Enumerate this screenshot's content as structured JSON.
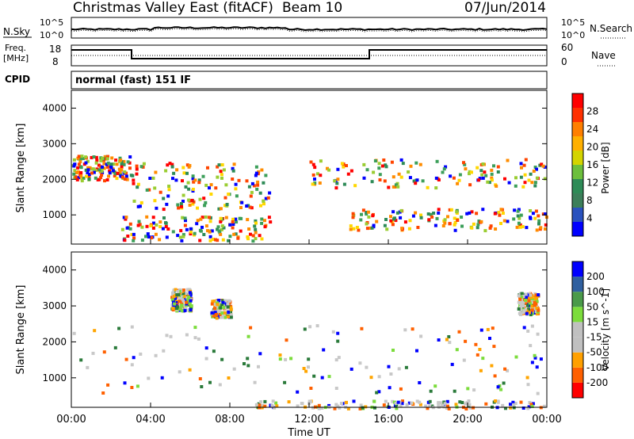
{
  "header": {
    "station": "Christmas Valley East (fitACF)",
    "beam": "Beam 10",
    "date": "07/Jun/2014"
  },
  "panel_labels": {
    "nsky": "N.Sky",
    "nsearch": "N.Search",
    "freq_line1": "Freq.",
    "freq_line2": "[MHz]",
    "nave": "Nave",
    "cpid": "CPID",
    "cpid_value": "normal (fast) 151 IF",
    "noise_top": "10^5",
    "noise_bottom": "10^0",
    "freq_top": "18",
    "freq_bottom": "8",
    "nave_top": "60",
    "nave_bottom": "0"
  },
  "colors": {
    "power_scale": [
      "#0000ff",
      "#2a52be",
      "#3c7f5a",
      "#2e8b57",
      "#6cbf3c",
      "#d4d400",
      "#ffb000",
      "#ff7f00",
      "#ff3000",
      "#ff0000"
    ],
    "velocity_scale": [
      "#ff0000",
      "#ff6000",
      "#ffa000",
      "#c0c0c0",
      "#c0c0c0",
      "#7cdc3c",
      "#4a9a4a",
      "#3060a0",
      "#0000ff"
    ]
  },
  "chart_data": [
    {
      "type": "heatmap",
      "name": "Power panel",
      "ylabel": "Slant Range [km]",
      "xlabel": "",
      "x_ticks": [
        "00:00",
        "04:00",
        "08:00",
        "12:00",
        "16:00",
        "20:00",
        "00:00"
      ],
      "y_ticks": [
        1000,
        2000,
        3000,
        4000
      ],
      "ylim": [
        180,
        4500
      ],
      "xlim_hours": [
        0,
        24
      ],
      "colorbar": {
        "label": "Power [dB]",
        "ticks": [
          4,
          8,
          12,
          16,
          20,
          24,
          28
        ]
      },
      "features": [
        {
          "desc": "ionospheric band",
          "hours": [
            0,
            3
          ],
          "range_km": [
            2000,
            2700
          ],
          "level": "high"
        },
        {
          "desc": "ground scatter",
          "hours": [
            2.5,
            10
          ],
          "range_km": [
            300,
            1000
          ],
          "level": "high"
        },
        {
          "desc": "arc",
          "hours": [
            3,
            10
          ],
          "range_km": [
            1200,
            2500
          ],
          "level": "medium"
        },
        {
          "desc": "band",
          "hours": [
            12,
            24
          ],
          "range_km": [
            1800,
            2600
          ],
          "level": "medium"
        },
        {
          "desc": "lower band",
          "hours": [
            14,
            24
          ],
          "range_km": [
            600,
            1200
          ],
          "level": "high"
        }
      ]
    },
    {
      "type": "heatmap",
      "name": "Velocity panel",
      "ylabel": "Slant Range [km]",
      "xlabel": "Time UT",
      "x_ticks": [
        "00:00",
        "04:00",
        "08:00",
        "12:00",
        "16:00",
        "20:00",
        "00:00"
      ],
      "y_ticks": [
        1000,
        2000,
        3000,
        4000
      ],
      "ylim": [
        180,
        4500
      ],
      "xlim_hours": [
        0,
        24
      ],
      "colorbar": {
        "label": "Velocity [m s^-1]",
        "ticks": [
          200,
          100,
          50,
          15,
          -15,
          -50,
          -100,
          -200
        ]
      },
      "features": [
        {
          "desc": "ground scatter (grey)",
          "hours": [
            0,
            24
          ],
          "range_km": [
            600,
            2500
          ],
          "level": "near zero"
        },
        {
          "desc": "positive velocity patch",
          "hours": [
            5,
            6
          ],
          "range_km": [
            2900,
            3500
          ],
          "level": "+200"
        },
        {
          "desc": "negative velocity patch",
          "hours": [
            7,
            8
          ],
          "range_km": [
            2700,
            3200
          ],
          "level": "-200"
        },
        {
          "desc": "positive velocity patch",
          "hours": [
            22.5,
            23.5
          ],
          "range_km": [
            2800,
            3400
          ],
          "level": "+200"
        },
        {
          "desc": "low range negative band",
          "hours": [
            9,
            24
          ],
          "range_km": [
            180,
            400
          ],
          "level": "-50"
        }
      ]
    }
  ]
}
